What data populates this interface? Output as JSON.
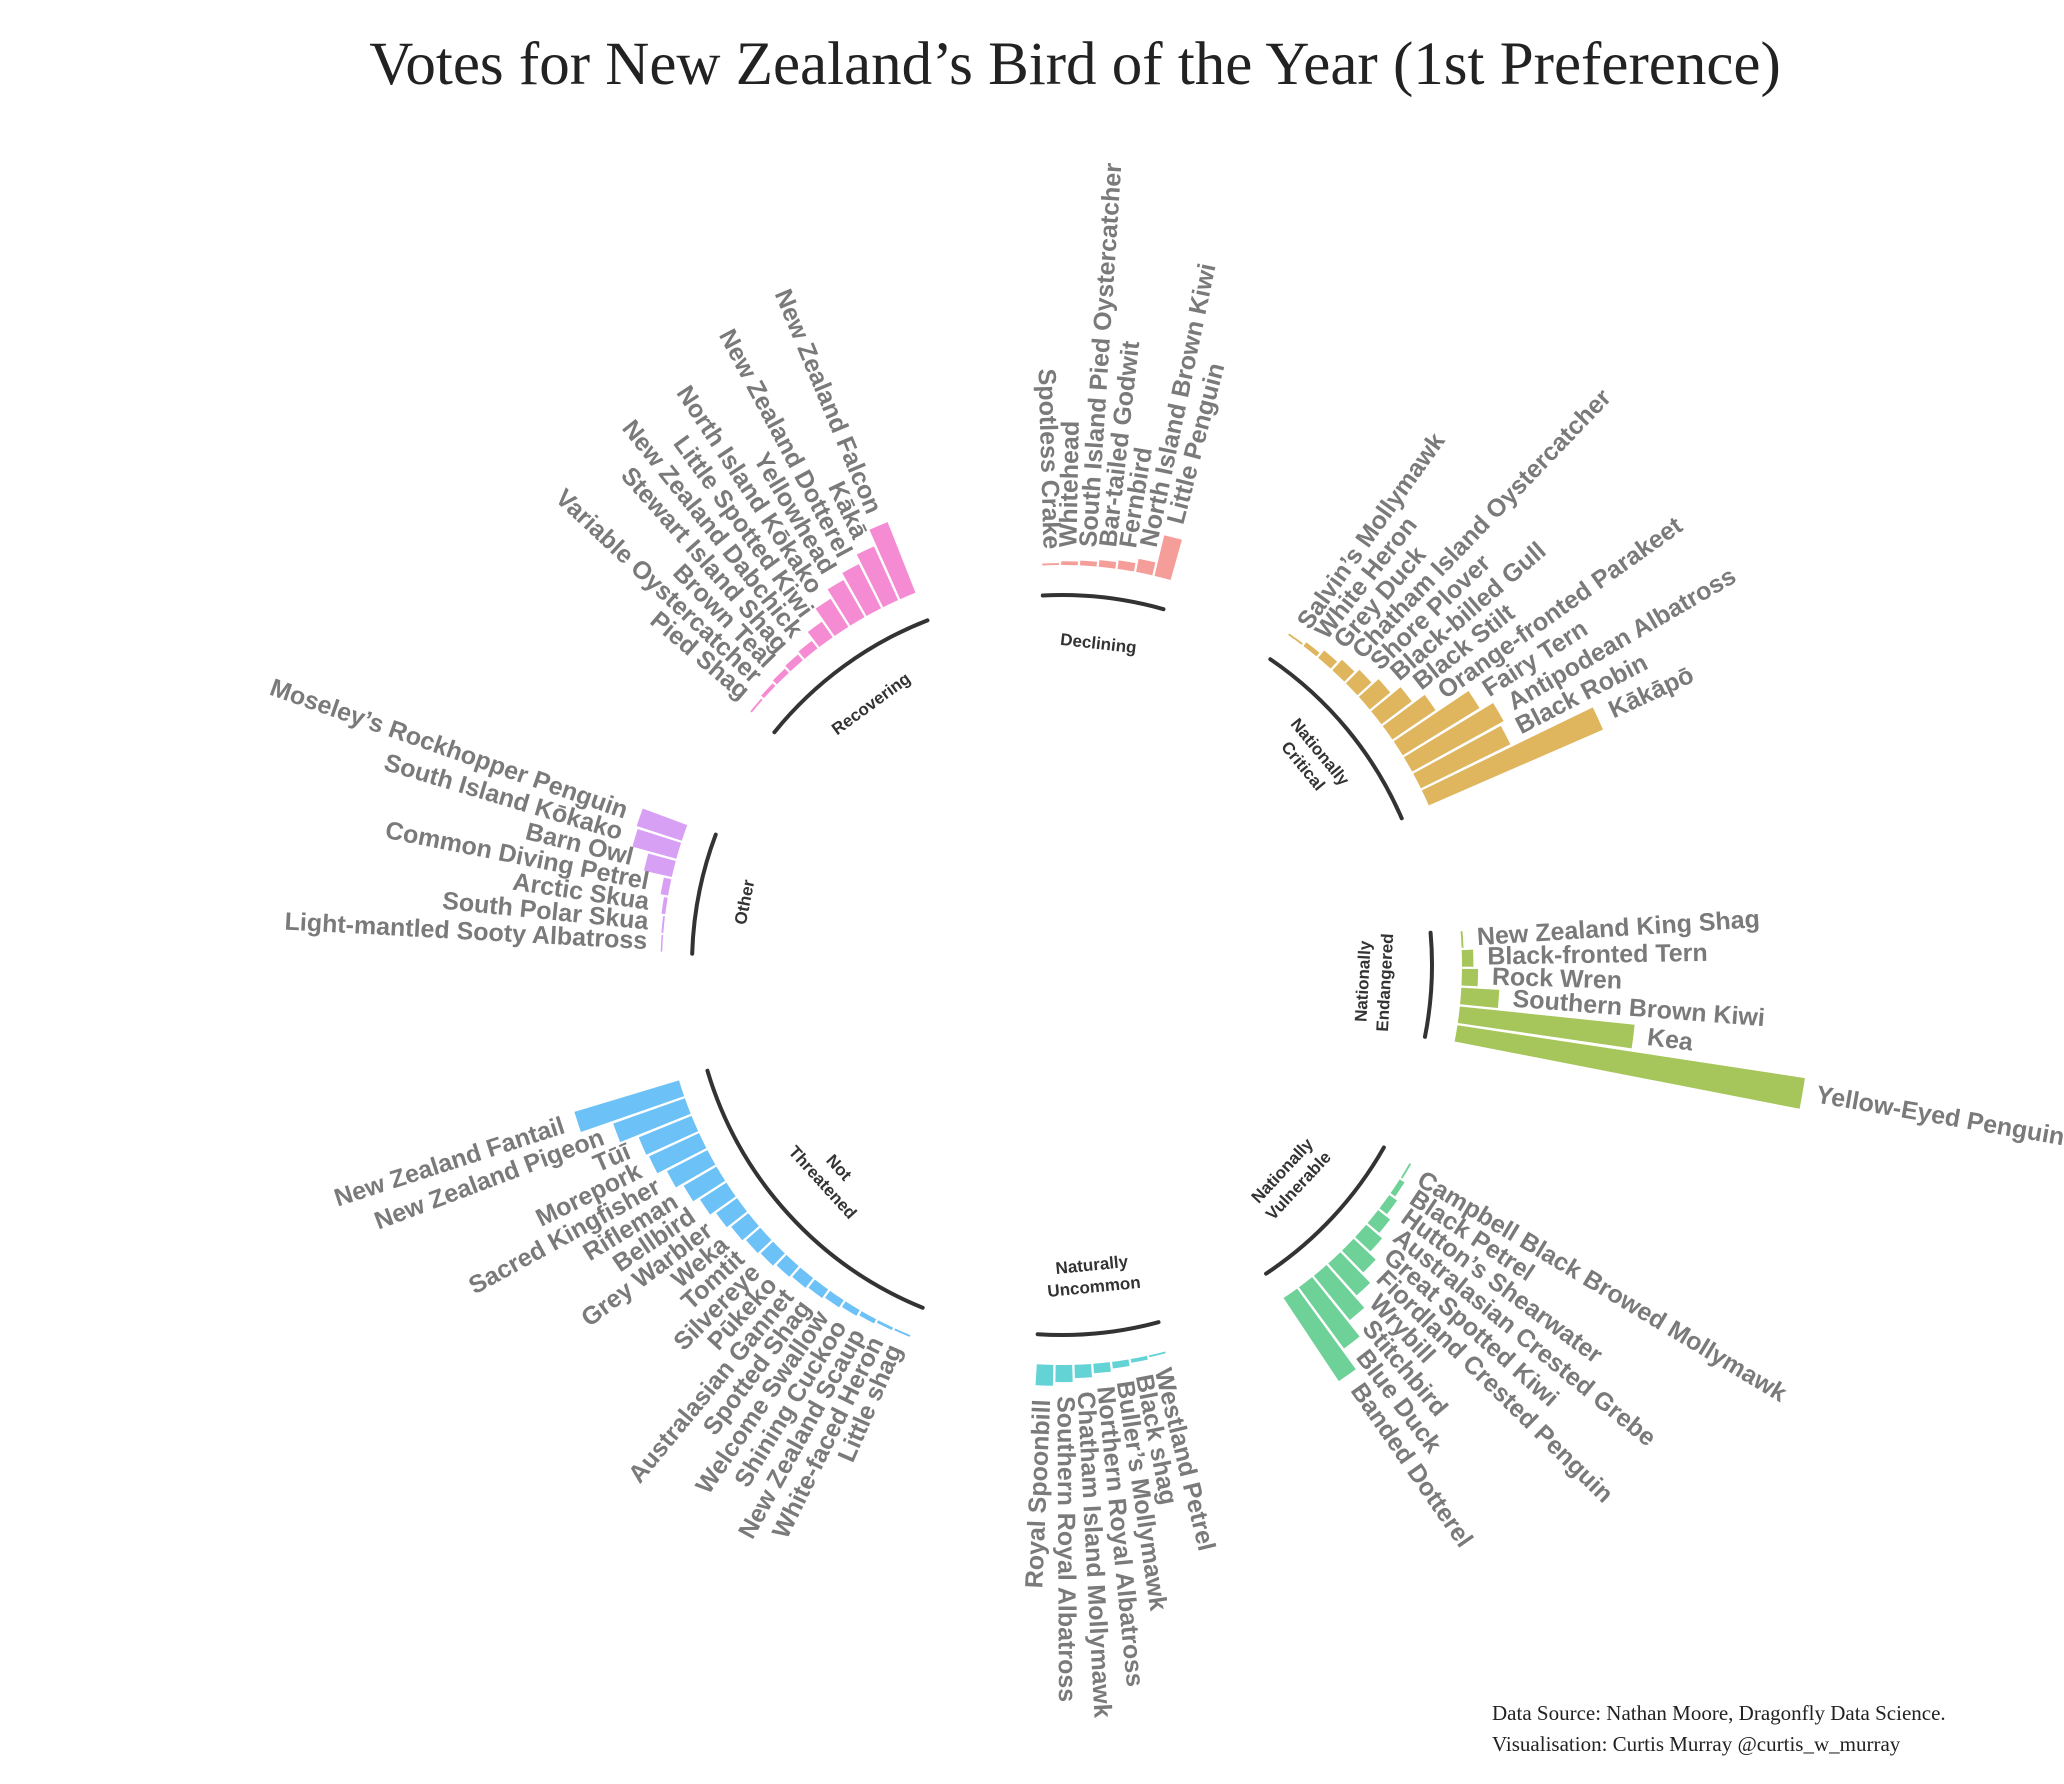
{
  "chart_data": {
    "type": "radial-bar",
    "title": "Votes for New Zealand’s Bird of the Year  (1st Preference)",
    "groups": [
      {
        "name": "Nationally Endangered",
        "label_lines": [
          "Nationally",
          "Endangered"
        ],
        "color": "#a6c65c",
        "birds": [
          {
            "name": "New Zealand King Shag",
            "value": 2
          },
          {
            "name": "Black-fronted Tern",
            "value": 12
          },
          {
            "name": "Rock Wren",
            "value": 17
          },
          {
            "name": "Southern Brown Kiwi",
            "value": 40
          },
          {
            "name": "Kea",
            "value": 185
          },
          {
            "name": "Yellow-Eyed Penguin",
            "value": 370
          }
        ]
      },
      {
        "name": "Nationally Vulnerable",
        "label_lines": [
          "Nationally",
          "Vulnerable"
        ],
        "color": "#6dd198",
        "birds": [
          {
            "name": "Campbell Black Browed Mollymawk",
            "value": 2
          },
          {
            "name": "Black Petrel",
            "value": 6
          },
          {
            "name": "Hutton’s Shearwater",
            "value": 10
          },
          {
            "name": "Australasian Crested Grebe",
            "value": 16
          },
          {
            "name": "Great Spotted Kiwi",
            "value": 22
          },
          {
            "name": "Fiordland Crested Penguin",
            "value": 32
          },
          {
            "name": "Wrybill",
            "value": 45
          },
          {
            "name": "Stitchbird",
            "value": 60
          },
          {
            "name": "Blue Duck",
            "value": 80
          },
          {
            "name": "Banded Dotterel",
            "value": 105
          }
        ]
      },
      {
        "name": "Naturally Uncommon",
        "label_lines": [
          "Naturally",
          "Uncommon"
        ],
        "color": "#63d3d6",
        "birds": [
          {
            "name": "Westland Petrel",
            "value": 2
          },
          {
            "name": "Black shag",
            "value": 4
          },
          {
            "name": "Buller’s Mollymawk",
            "value": 7
          },
          {
            "name": "Northern Royal Albatross",
            "value": 10
          },
          {
            "name": "Chatham Island Mollymawk",
            "value": 14
          },
          {
            "name": "Southern Royal Albatross",
            "value": 18
          },
          {
            "name": "Royal Spoonbill",
            "value": 22
          }
        ]
      },
      {
        "name": "Not Threatened",
        "label_lines": [
          "Not",
          "Threatened"
        ],
        "color": "#6cc1f7",
        "birds": [
          {
            "name": "Little shag",
            "value": 2
          },
          {
            "name": "White-faced Heron",
            "value": 3
          },
          {
            "name": "New Zealand Scaup",
            "value": 5
          },
          {
            "name": "Shining Cuckoo",
            "value": 7
          },
          {
            "name": "Welcome Swallow",
            "value": 9
          },
          {
            "name": "Spotted Shag",
            "value": 11
          },
          {
            "name": "Australasian Gannet",
            "value": 13
          },
          {
            "name": "Pūkeko",
            "value": 15
          },
          {
            "name": "Silvereye",
            "value": 18
          },
          {
            "name": "Tomtit",
            "value": 20
          },
          {
            "name": "Weka",
            "value": 23
          },
          {
            "name": "Grey Warbler",
            "value": 27
          },
          {
            "name": "Bellbird",
            "value": 33
          },
          {
            "name": "Rifleman",
            "value": 40
          },
          {
            "name": "Sacred Kingfisher",
            "value": 48
          },
          {
            "name": "Morepork",
            "value": 58
          },
          {
            "name": "Tūī",
            "value": 60
          },
          {
            "name": "New Zealand Pigeon",
            "value": 80
          },
          {
            "name": "New Zealand Fantail",
            "value": 115
          }
        ]
      },
      {
        "name": "Other",
        "label_lines": [
          "Other"
        ],
        "color": "#d8a0f4",
        "birds": [
          {
            "name": "Light-mantled Sooty Albatross",
            "value": 1
          },
          {
            "name": "South Polar Skua",
            "value": 2
          },
          {
            "name": "Arctic Skua",
            "value": 4
          },
          {
            "name": "Common Diving Petrel",
            "value": 8
          },
          {
            "name": "Barn Owl",
            "value": 30
          },
          {
            "name": "South Island Kōkako",
            "value": 48
          },
          {
            "name": "Moseley’s Rockhopper Penguin",
            "value": 50
          }
        ]
      },
      {
        "name": "Recovering",
        "label_lines": [
          "Recovering"
        ],
        "color": "#f58bd2",
        "birds": [
          {
            "name": "Pied Shag",
            "value": 2
          },
          {
            "name": "Variable Oystercatcher",
            "value": 4
          },
          {
            "name": "Brown Teal",
            "value": 6
          },
          {
            "name": "Stewart Island Shag",
            "value": 8
          },
          {
            "name": "New Zealand Dabchick",
            "value": 10
          },
          {
            "name": "Little Spotted Kiwi",
            "value": 20
          },
          {
            "name": "North Island Kōkako",
            "value": 35
          },
          {
            "name": "Yellowhead",
            "value": 45
          },
          {
            "name": "New Zealand Dotterel",
            "value": 52
          },
          {
            "name": "Kākā",
            "value": 62
          },
          {
            "name": "New Zealand Falcon",
            "value": 80
          }
        ]
      },
      {
        "name": "Declining",
        "label_lines": [
          "Declining"
        ],
        "color": "#f59d99",
        "birds": [
          {
            "name": "Spotless Crake",
            "value": 2
          },
          {
            "name": "Whitehead",
            "value": 4
          },
          {
            "name": "South Island Pied Oystercatcher",
            "value": 5
          },
          {
            "name": "Bar-tailed Godwit",
            "value": 7
          },
          {
            "name": "Fernbird",
            "value": 9
          },
          {
            "name": "North Island Brown Kiwi",
            "value": 14
          },
          {
            "name": "Little Penguin",
            "value": 44
          }
        ]
      },
      {
        "name": "Nationally Critical",
        "label_lines": [
          "Nationally",
          "Critical"
        ],
        "color": "#dfb55e",
        "birds": [
          {
            "name": "Salvin’s Mollymawk",
            "value": 2
          },
          {
            "name": "White Heron",
            "value": 5
          },
          {
            "name": "Grey Duck",
            "value": 10
          },
          {
            "name": "Chatham Island Oystercatcher",
            "value": 15
          },
          {
            "name": "Shore Plover",
            "value": 20
          },
          {
            "name": "Black-billed Gull",
            "value": 28
          },
          {
            "name": "Black Stilt",
            "value": 40
          },
          {
            "name": "Orange-fronted Parakeet",
            "value": 55
          },
          {
            "name": "Fairy Tern",
            "value": 95
          },
          {
            "name": "Antipodean Albatross",
            "value": 110
          },
          {
            "name": "Black Robin",
            "value": 105
          },
          {
            "name": "Kākāpō",
            "value": 200
          }
        ]
      }
    ]
  },
  "credits": {
    "line1": "Data Source: Nathan Moore, Dragonfly Data Science.",
    "line2": "Visualisation: Curtis Murray @curtis_w_murray"
  }
}
